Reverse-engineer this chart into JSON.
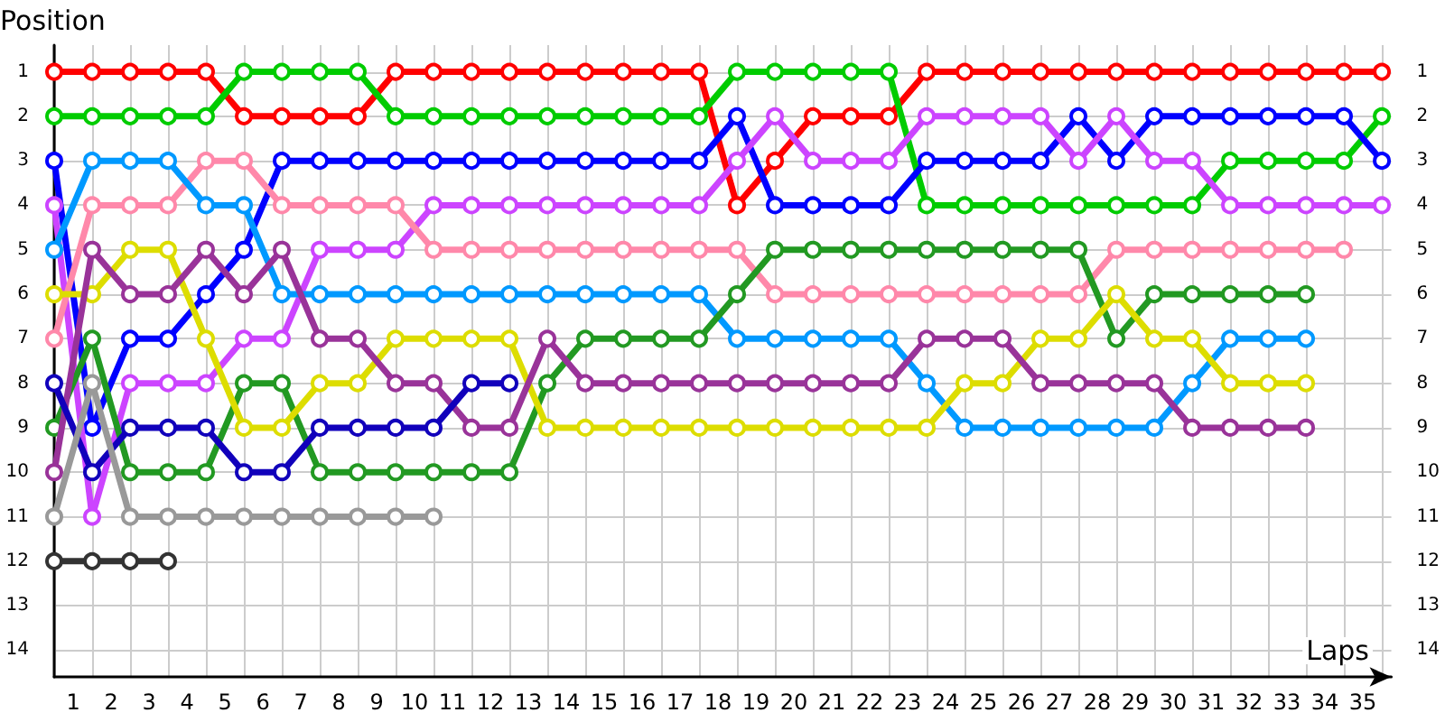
{
  "chart_data": {
    "type": "line",
    "xlabel": "Laps",
    "ylabel": "Position",
    "x": [
      0,
      1,
      2,
      3,
      4,
      5,
      6,
      7,
      8,
      9,
      10,
      11,
      12,
      13,
      14,
      15,
      16,
      17,
      18,
      19,
      20,
      21,
      22,
      23,
      24,
      25,
      26,
      27,
      28,
      29,
      30,
      31,
      32,
      33,
      34,
      35
    ],
    "xlim": [
      0,
      35.25
    ],
    "xticks": [
      {
        "value": 0,
        "label": null
      },
      {
        "value": 0.5,
        "label": "1"
      },
      {
        "value": 1,
        "label": null
      },
      {
        "value": 1.5,
        "label": "2"
      },
      {
        "value": 2,
        "label": null
      },
      {
        "value": 2.5,
        "label": "3"
      },
      {
        "value": 3,
        "label": null
      },
      {
        "value": 3.5,
        "label": "4"
      },
      {
        "value": 4,
        "label": null
      },
      {
        "value": 4.5,
        "label": "5"
      },
      {
        "value": 5,
        "label": null
      },
      {
        "value": 5.5,
        "label": "6"
      },
      {
        "value": 6,
        "label": null
      },
      {
        "value": 6.5,
        "label": "7"
      },
      {
        "value": 7,
        "label": null
      },
      {
        "value": 7.5,
        "label": "8"
      },
      {
        "value": 8,
        "label": null
      },
      {
        "value": 8.5,
        "label": "9"
      },
      {
        "value": 9,
        "label": null
      },
      {
        "value": 9.5,
        "label": "10"
      },
      {
        "value": 10,
        "label": null
      },
      {
        "value": 10.5,
        "label": "11"
      },
      {
        "value": 11,
        "label": null
      },
      {
        "value": 11.5,
        "label": "12"
      },
      {
        "value": 12,
        "label": null
      },
      {
        "value": 12.5,
        "label": "13"
      },
      {
        "value": 13,
        "label": null
      },
      {
        "value": 13.5,
        "label": "14"
      },
      {
        "value": 14,
        "label": null
      },
      {
        "value": 14.5,
        "label": "15"
      },
      {
        "value": 15,
        "label": null
      },
      {
        "value": 15.5,
        "label": "16"
      },
      {
        "value": 16,
        "label": null
      },
      {
        "value": 16.5,
        "label": "17"
      },
      {
        "value": 17,
        "label": null
      },
      {
        "value": 17.5,
        "label": "18"
      },
      {
        "value": 18,
        "label": null
      },
      {
        "value": 18.5,
        "label": "19"
      },
      {
        "value": 19,
        "label": null
      },
      {
        "value": 19.5,
        "label": "20"
      },
      {
        "value": 20,
        "label": null
      },
      {
        "value": 20.5,
        "label": "21"
      },
      {
        "value": 21,
        "label": null
      },
      {
        "value": 21.5,
        "label": "22"
      },
      {
        "value": 22,
        "label": null
      },
      {
        "value": 22.5,
        "label": "23"
      },
      {
        "value": 23,
        "label": null
      },
      {
        "value": 23.5,
        "label": "24"
      },
      {
        "value": 24,
        "label": null
      },
      {
        "value": 24.5,
        "label": "25"
      },
      {
        "value": 25,
        "label": null
      },
      {
        "value": 25.5,
        "label": "26"
      },
      {
        "value": 26,
        "label": null
      },
      {
        "value": 26.5,
        "label": "27"
      },
      {
        "value": 27,
        "label": null
      },
      {
        "value": 27.5,
        "label": "28"
      },
      {
        "value": 28,
        "label": null
      },
      {
        "value": 28.5,
        "label": "29"
      },
      {
        "value": 29,
        "label": null
      },
      {
        "value": 29.5,
        "label": "30"
      },
      {
        "value": 30,
        "label": null
      },
      {
        "value": 30.5,
        "label": "31"
      },
      {
        "value": 31,
        "label": null
      },
      {
        "value": 31.5,
        "label": "32"
      },
      {
        "value": 32,
        "label": null
      },
      {
        "value": 32.5,
        "label": "33"
      },
      {
        "value": 33,
        "label": null
      },
      {
        "value": 33.5,
        "label": "34"
      },
      {
        "value": 34,
        "label": null
      },
      {
        "value": 34.5,
        "label": "35"
      },
      {
        "value": 35,
        "label": null
      }
    ],
    "ylim": [
      14.6,
      0.4
    ],
    "yticks": [
      1,
      2,
      3,
      4,
      5,
      6,
      7,
      8,
      9,
      10,
      11,
      12,
      13,
      14
    ],
    "y2lim": [
      14.6,
      0.4
    ],
    "y2ticks": [
      1,
      2,
      3,
      4,
      5,
      6,
      7,
      8,
      9,
      10,
      11,
      12,
      13,
      14
    ],
    "grid": true,
    "marker": "circle",
    "line_style": "solid",
    "series": [
      {
        "color": "#ff0000",
        "values": [
          1,
          1,
          1,
          1,
          1,
          2,
          2,
          2,
          2,
          1,
          1,
          1,
          1,
          1,
          1,
          1,
          1,
          1,
          4,
          3,
          2,
          2,
          2,
          1,
          1,
          1,
          1,
          1,
          1,
          1,
          1,
          1,
          1,
          1,
          1,
          1
        ]
      },
      {
        "color": "#00cc00",
        "values": [
          2,
          2,
          2,
          2,
          2,
          1,
          1,
          1,
          1,
          2,
          2,
          2,
          2,
          2,
          2,
          2,
          2,
          2,
          1,
          1,
          1,
          1,
          1,
          4,
          4,
          4,
          4,
          4,
          4,
          4,
          4,
          3,
          3,
          3,
          3,
          2
        ]
      },
      {
        "color": "#0000ff",
        "values": [
          3,
          9,
          7,
          7,
          6,
          5,
          3,
          3,
          3,
          3,
          3,
          3,
          3,
          3,
          3,
          3,
          3,
          3,
          2,
          4,
          4,
          4,
          4,
          3,
          3,
          3,
          3,
          2,
          3,
          2,
          2,
          2,
          2,
          2,
          2,
          3
        ]
      },
      {
        "color": "#cc44ff",
        "values": [
          4,
          11,
          8,
          8,
          8,
          7,
          7,
          5,
          5,
          5,
          4,
          4,
          4,
          4,
          4,
          4,
          4,
          4,
          3,
          2,
          3,
          3,
          3,
          2,
          2,
          2,
          2,
          3,
          2,
          3,
          3,
          4,
          4,
          4,
          4,
          4
        ]
      },
      {
        "color": "#ff88aa",
        "values": [
          7,
          4,
          4,
          4,
          3,
          3,
          4,
          4,
          4,
          4,
          5,
          5,
          5,
          5,
          5,
          5,
          5,
          5,
          5,
          6,
          6,
          6,
          6,
          6,
          6,
          6,
          6,
          6,
          5,
          5,
          5,
          5,
          5,
          5,
          5,
          null
        ]
      },
      {
        "color": "#0099ff",
        "values": [
          5,
          3,
          3,
          3,
          4,
          4,
          6,
          6,
          6,
          6,
          6,
          6,
          6,
          6,
          6,
          6,
          6,
          6,
          7,
          7,
          7,
          7,
          7,
          8,
          9,
          9,
          9,
          9,
          9,
          9,
          8,
          7,
          7,
          7,
          null,
          null
        ]
      },
      {
        "color": "#229922",
        "values": [
          9,
          7,
          10,
          10,
          10,
          8,
          8,
          10,
          10,
          10,
          10,
          10,
          10,
          8,
          7,
          7,
          7,
          7,
          6,
          5,
          5,
          5,
          5,
          5,
          5,
          5,
          5,
          5,
          7,
          6,
          6,
          6,
          6,
          6,
          null,
          null
        ]
      },
      {
        "color": "#dddd00",
        "values": [
          6,
          6,
          5,
          5,
          7,
          9,
          9,
          8,
          8,
          7,
          7,
          7,
          7,
          9,
          9,
          9,
          9,
          9,
          9,
          9,
          9,
          9,
          9,
          9,
          8,
          8,
          7,
          7,
          6,
          7,
          7,
          8,
          8,
          8,
          null,
          null
        ]
      },
      {
        "color": "#993399",
        "values": [
          10,
          5,
          6,
          6,
          5,
          6,
          5,
          7,
          7,
          8,
          8,
          9,
          9,
          7,
          8,
          8,
          8,
          8,
          8,
          8,
          8,
          8,
          8,
          7,
          7,
          7,
          8,
          8,
          8,
          8,
          9,
          9,
          9,
          9,
          null,
          null
        ]
      },
      {
        "color": "#1100bb",
        "values": [
          8,
          10,
          9,
          9,
          9,
          10,
          10,
          9,
          9,
          9,
          9,
          8,
          8,
          null,
          null,
          null,
          null,
          null,
          null,
          null,
          null,
          null,
          null,
          null,
          null,
          null,
          null,
          null,
          null,
          null,
          null,
          null,
          null,
          null,
          null,
          null
        ]
      },
      {
        "color": "#999999",
        "values": [
          11,
          8,
          11,
          11,
          11,
          11,
          11,
          11,
          11,
          11,
          11,
          null,
          null,
          null,
          null,
          null,
          null,
          null,
          null,
          null,
          null,
          null,
          null,
          null,
          null,
          null,
          null,
          null,
          null,
          null,
          null,
          null,
          null,
          null,
          null,
          null
        ]
      },
      {
        "color": "#333333",
        "values": [
          12,
          12,
          12,
          12,
          null,
          null,
          null,
          null,
          null,
          null,
          null,
          null,
          null,
          null,
          null,
          null,
          null,
          null,
          null,
          null,
          null,
          null,
          null,
          null,
          null,
          null,
          null,
          null,
          null,
          null,
          null,
          null,
          null,
          null,
          null,
          null
        ]
      }
    ]
  }
}
